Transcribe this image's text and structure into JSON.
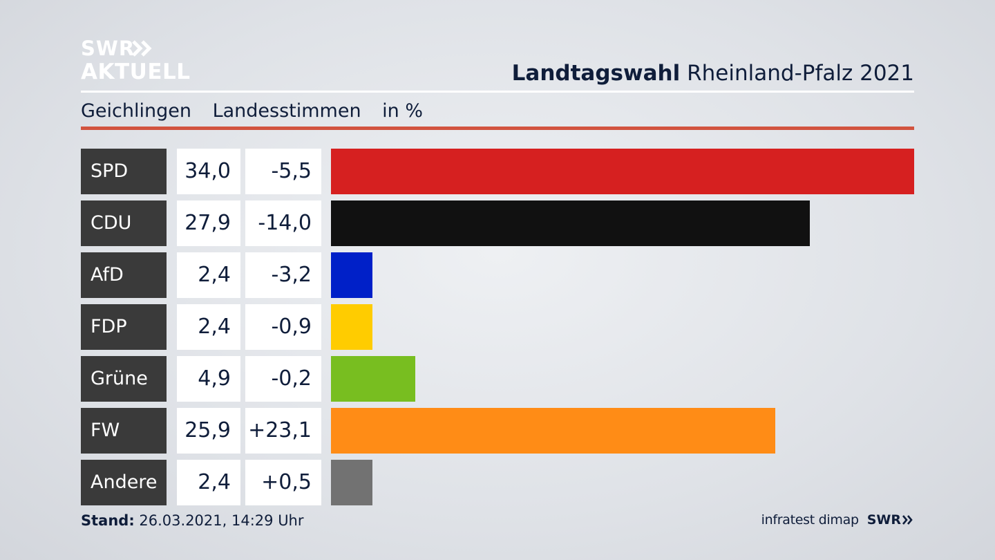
{
  "logo": {
    "line1": "SWR",
    "line2": "AKTUELL"
  },
  "title": {
    "bold": "Landtagswahl",
    "rest": "Rheinland-Pfalz 2021"
  },
  "subtitle": {
    "place": "Geichlingen",
    "kind": "Landesstimmen",
    "unit": "in %"
  },
  "colors": {
    "accent_rule": "#d2533f",
    "party_box": "#3a3a3a"
  },
  "chart_data": {
    "type": "bar",
    "orientation": "horizontal",
    "categories": [
      "SPD",
      "CDU",
      "AfD",
      "FDP",
      "Grüne",
      "FW",
      "Andere"
    ],
    "series": [
      {
        "values": [
          34.0,
          27.9,
          2.4,
          2.4,
          4.9,
          25.9,
          2.4
        ]
      }
    ],
    "value_labels": [
      "34,0",
      "27,9",
      "2,4",
      "2,4",
      "4,9",
      "25,9",
      "2,4"
    ],
    "change_labels": [
      "-5,5",
      "-14,0",
      "-3,2",
      "-0,9",
      "-0,2",
      "+23,1",
      "+0,5"
    ],
    "changes": [
      -5.5,
      -14.0,
      -3.2,
      -0.9,
      -0.2,
      23.1,
      0.5
    ],
    "bar_colors": [
      "#d62020",
      "#111111",
      "#0020c8",
      "#ffcc00",
      "#78be20",
      "#ff8c16",
      "#727272"
    ],
    "xlim": [
      0,
      34.0
    ],
    "grid": false
  },
  "footer": {
    "stand_label": "Stand:",
    "stand_value": "26.03.2021, 14:29 Uhr",
    "source": "infratest dimap",
    "brand": "SWR"
  }
}
